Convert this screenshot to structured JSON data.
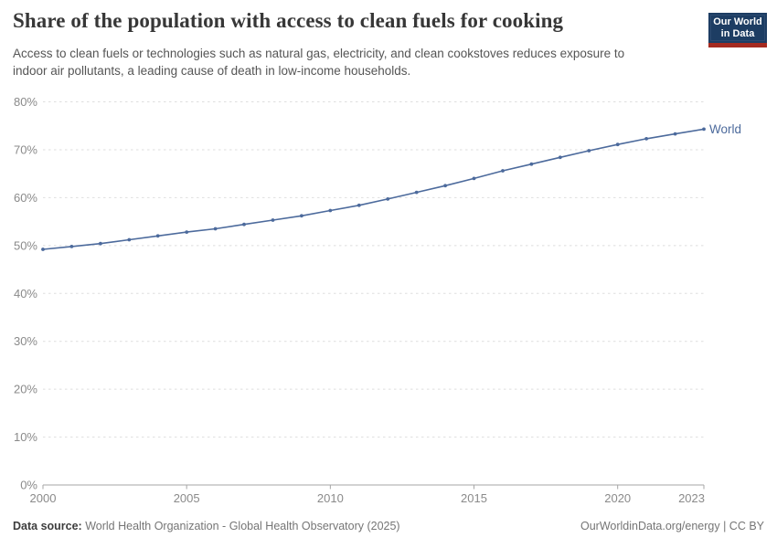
{
  "header": {
    "title": "Share of the population with access to clean fuels for cooking",
    "subtitle": "Access to clean fuels or technologies such as natural gas, electricity, and clean cookstoves reduces exposure to indoor air pollutants, a leading cause of death in low-income households.",
    "logo": {
      "line1": "Our World",
      "line2": "in Data",
      "bg_color": "#1d3d63",
      "accent_color": "#a52a20"
    }
  },
  "chart_data": {
    "type": "line",
    "title": "Share of the population with access to clean fuels for cooking",
    "x": [
      2000,
      2001,
      2002,
      2003,
      2004,
      2005,
      2006,
      2007,
      2008,
      2009,
      2010,
      2011,
      2012,
      2013,
      2014,
      2015,
      2016,
      2017,
      2018,
      2019,
      2020,
      2021,
      2022,
      2023
    ],
    "series": [
      {
        "name": "World",
        "color": "#4C6A9C",
        "values": [
          49.2,
          49.8,
          50.4,
          51.2,
          52.0,
          52.8,
          53.5,
          54.4,
          55.3,
          56.2,
          57.3,
          58.4,
          59.7,
          61.1,
          62.5,
          64.0,
          65.6,
          67.0,
          68.4,
          69.8,
          71.1,
          72.3,
          73.3,
          74.3
        ]
      }
    ],
    "x_ticks": [
      2000,
      2005,
      2010,
      2015,
      2020,
      2023
    ],
    "y_ticks": [
      0,
      10,
      20,
      30,
      40,
      50,
      60,
      70,
      80
    ],
    "y_tick_suffix": "%",
    "xlim": [
      2000,
      2023
    ],
    "ylim": [
      0,
      80
    ],
    "grid": "horizontal-dashed",
    "legend": "series-end-label"
  },
  "footer": {
    "datasource_label": "Data source:",
    "datasource": "World Health Organization - Global Health Observatory (2025)",
    "right": "OurWorldinData.org/energy | CC BY"
  }
}
